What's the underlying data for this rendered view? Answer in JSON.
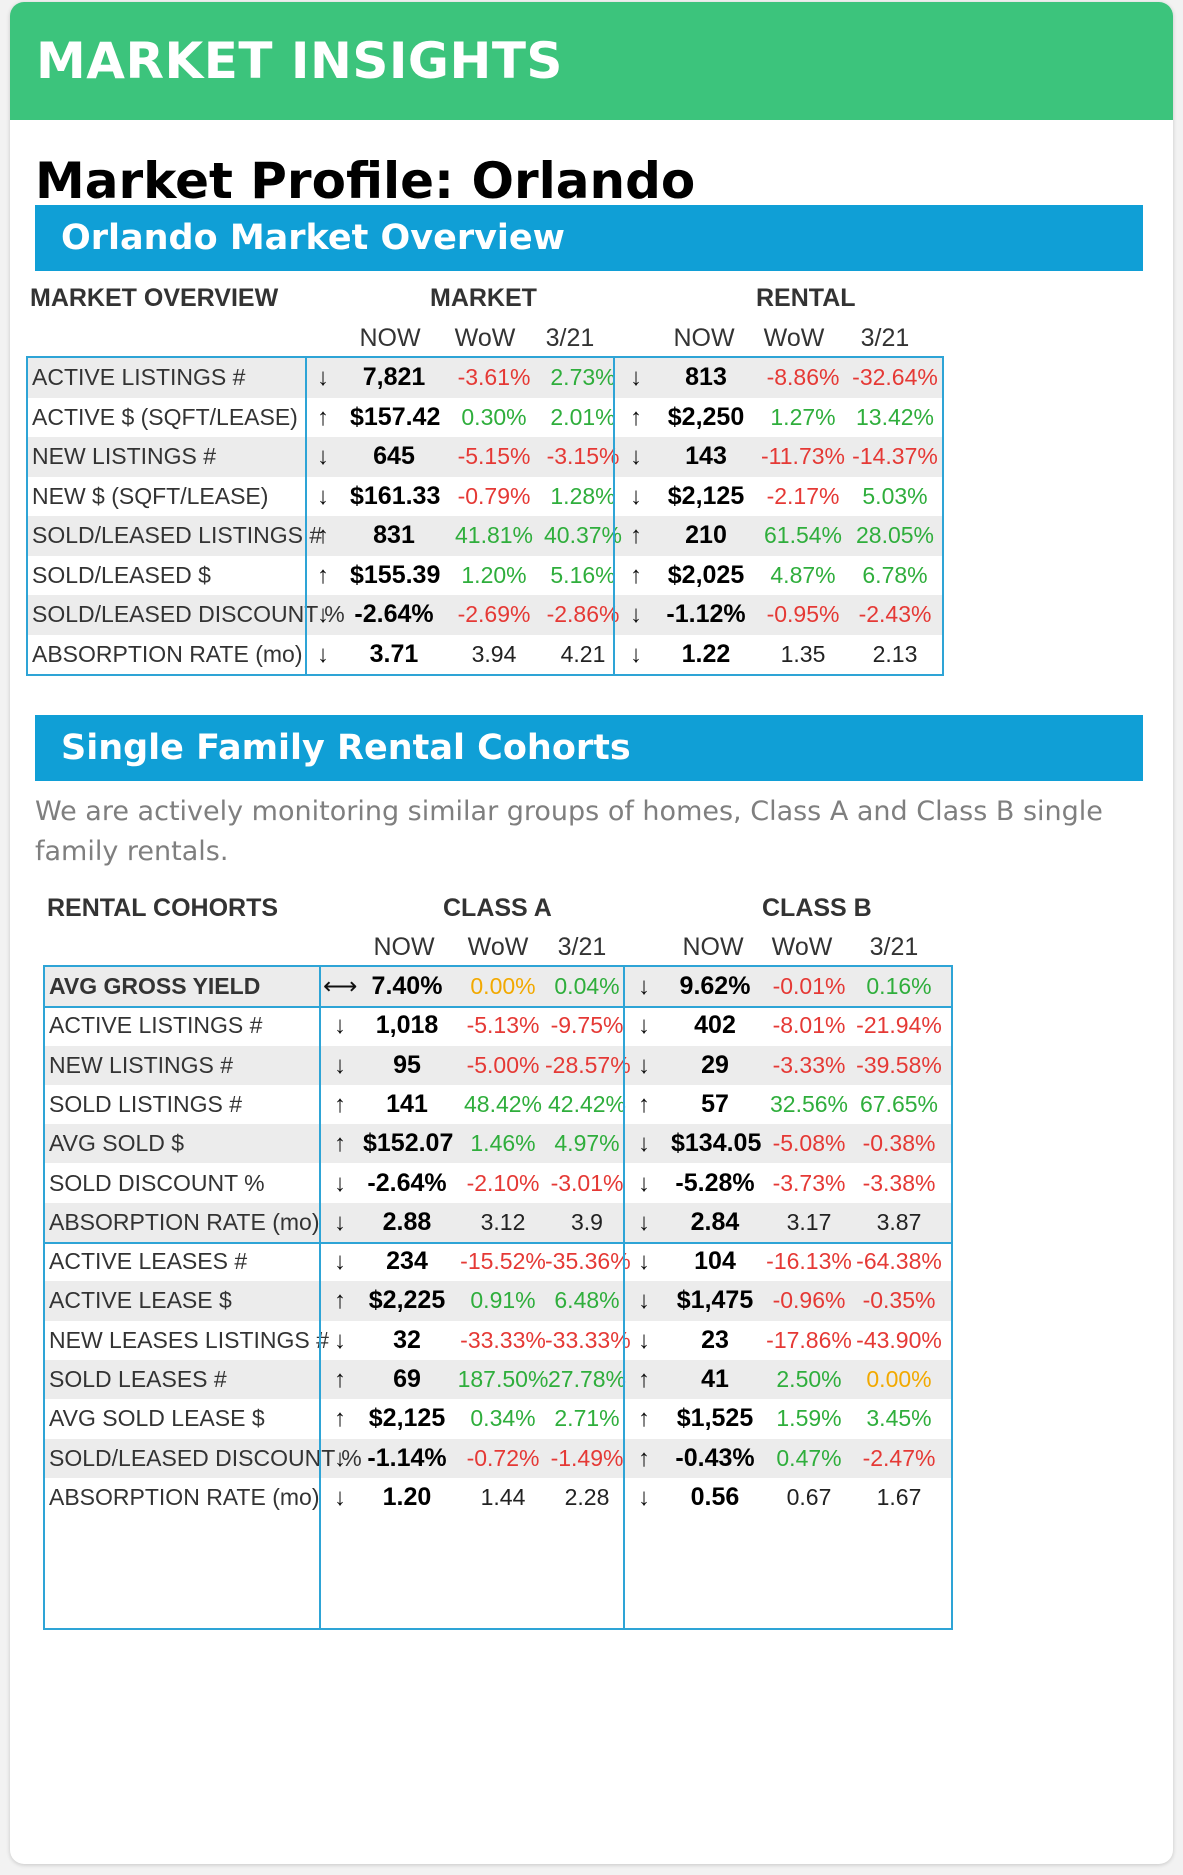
{
  "header": {
    "title": "MARKET INSIGHTS"
  },
  "page_title": "Market Profile: Orlando",
  "overview": {
    "section_title": "Orlando Market Overview",
    "label_header": "MARKET OVERVIEW",
    "group_left": "MARKET",
    "group_right": "RENTAL",
    "sub_headers": [
      "NOW",
      "WoW",
      "3/21"
    ],
    "rows": [
      {
        "label": "ACTIVE LISTINGS #",
        "m": [
          "↓",
          "7,821",
          "-3.61%",
          "2.73%"
        ],
        "r": [
          "↓",
          "813",
          "-8.86%",
          "-32.64%"
        ]
      },
      {
        "label": "ACTIVE $ (SQFT/LEASE)",
        "m": [
          "↑",
          "$157.42",
          "0.30%",
          "2.01%"
        ],
        "r": [
          "↑",
          "$2,250",
          "1.27%",
          "13.42%"
        ]
      },
      {
        "label": "NEW LISTINGS #",
        "m": [
          "↓",
          "645",
          "-5.15%",
          "-3.15%"
        ],
        "r": [
          "↓",
          "143",
          "-11.73%",
          "-14.37%"
        ]
      },
      {
        "label": "NEW $ (SQFT/LEASE)",
        "m": [
          "↓",
          "$161.33",
          "-0.79%",
          "1.28%"
        ],
        "r": [
          "↓",
          "$2,125",
          "-2.17%",
          "5.03%"
        ]
      },
      {
        "label": "SOLD/LEASED LISTINGS #",
        "m": [
          "↑",
          "831",
          "41.81%",
          "40.37%"
        ],
        "r": [
          "↑",
          "210",
          "61.54%",
          "28.05%"
        ]
      },
      {
        "label": "SOLD/LEASED $",
        "m": [
          "↑",
          "$155.39",
          "1.20%",
          "5.16%"
        ],
        "r": [
          "↑",
          "$2,025",
          "4.87%",
          "6.78%"
        ]
      },
      {
        "label": "SOLD/LEASED DISCOUNT %",
        "m": [
          "↓",
          "-2.64%",
          "-2.69%",
          "-2.86%"
        ],
        "r": [
          "↓",
          "-1.12%",
          "-0.95%",
          "-2.43%"
        ]
      },
      {
        "label": "ABSORPTION RATE (mo)",
        "m": [
          "↓",
          "3.71",
          "3.94",
          "4.21"
        ],
        "r": [
          "↓",
          "1.22",
          "1.35",
          "2.13"
        ]
      }
    ]
  },
  "cohorts": {
    "section_title": "Single Family Rental Cohorts",
    "note": "We are actively monitoring similar groups of homes, Class A and Class B single family rentals.",
    "label_header": "RENTAL COHORTS",
    "group_left": "CLASS A",
    "group_right": "CLASS B",
    "sub_headers": [
      "NOW",
      "WoW",
      "3/21"
    ],
    "rows": [
      {
        "label": "AVG GROSS YIELD",
        "a": [
          "⟷",
          "7.40%",
          "0.00%",
          "0.04%"
        ],
        "b": [
          "↓",
          "9.62%",
          "-0.01%",
          "0.16%"
        ]
      },
      {
        "label": "ACTIVE LISTINGS #",
        "a": [
          "↓",
          "1,018",
          "-5.13%",
          "-9.75%"
        ],
        "b": [
          "↓",
          "402",
          "-8.01%",
          "-21.94%"
        ]
      },
      {
        "label": "NEW LISTINGS #",
        "a": [
          "↓",
          "95",
          "-5.00%",
          "-28.57%"
        ],
        "b": [
          "↓",
          "29",
          "-3.33%",
          "-39.58%"
        ]
      },
      {
        "label": "SOLD LISTINGS #",
        "a": [
          "↑",
          "141",
          "48.42%",
          "42.42%"
        ],
        "b": [
          "↑",
          "57",
          "32.56%",
          "67.65%"
        ]
      },
      {
        "label": "AVG SOLD $",
        "a": [
          "↑",
          "$152.07",
          "1.46%",
          "4.97%"
        ],
        "b": [
          "↓",
          "$134.05",
          "-5.08%",
          "-0.38%"
        ]
      },
      {
        "label": "SOLD DISCOUNT %",
        "a": [
          "↓",
          "-2.64%",
          "-2.10%",
          "-3.01%"
        ],
        "b": [
          "↓",
          "-5.28%",
          "-3.73%",
          "-3.38%"
        ]
      },
      {
        "label": "ABSORPTION RATE (mo)",
        "a": [
          "↓",
          "2.88",
          "3.12",
          "3.9"
        ],
        "b": [
          "↓",
          "2.84",
          "3.17",
          "3.87"
        ]
      },
      {
        "label": "ACTIVE LEASES #",
        "a": [
          "↓",
          "234",
          "-15.52%",
          "-35.36%"
        ],
        "b": [
          "↓",
          "104",
          "-16.13%",
          "-64.38%"
        ]
      },
      {
        "label": "ACTIVE LEASE $",
        "a": [
          "↑",
          "$2,225",
          "0.91%",
          "6.48%"
        ],
        "b": [
          "↓",
          "$1,475",
          "-0.96%",
          "-0.35%"
        ]
      },
      {
        "label": "NEW LEASES LISTINGS #",
        "a": [
          "↓",
          "32",
          "-33.33%",
          "-33.33%"
        ],
        "b": [
          "↓",
          "23",
          "-17.86%",
          "-43.90%"
        ]
      },
      {
        "label": "SOLD LEASES #",
        "a": [
          "↑",
          "69",
          "187.50%",
          "27.78%"
        ],
        "b": [
          "↑",
          "41",
          "2.50%",
          "0.00%"
        ]
      },
      {
        "label": "AVG SOLD LEASE $",
        "a": [
          "↑",
          "$2,125",
          "0.34%",
          "2.71%"
        ],
        "b": [
          "↑",
          "$1,525",
          "1.59%",
          "3.45%"
        ]
      },
      {
        "label": "SOLD/LEASED DISCOUNT %",
        "a": [
          "↓",
          "-1.14%",
          "-0.72%",
          "-1.49%"
        ],
        "b": [
          "↑",
          "-0.43%",
          "0.47%",
          "-2.47%"
        ]
      },
      {
        "label": "ABSORPTION RATE (mo)",
        "a": [
          "↓",
          "1.20",
          "1.44",
          "2.28"
        ],
        "b": [
          "↓",
          "0.56",
          "0.67",
          "1.67"
        ]
      }
    ]
  },
  "colors": {
    "header_green": "#3cc47c",
    "section_blue": "#109fd6",
    "border_blue": "#2ea4d6",
    "negative": "#e53935",
    "positive": "#2fae3c",
    "zero": "#f2a900"
  }
}
